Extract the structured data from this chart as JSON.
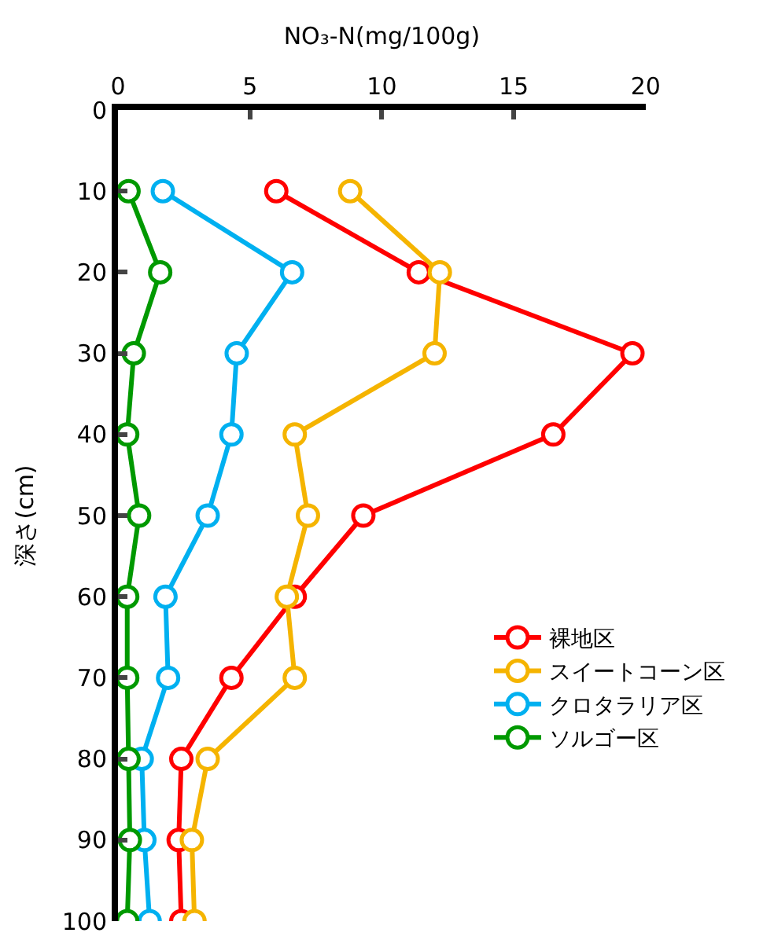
{
  "chart_data": {
    "type": "line",
    "xlabel": "NO₃-N(mg/100g)",
    "ylabel": "深さ(cm)",
    "orientation": "horizontal",
    "categories": [
      "0",
      "10",
      "20",
      "30",
      "40",
      "50",
      "60",
      "70",
      "80",
      "90",
      "100"
    ],
    "xlim": [
      0,
      20
    ],
    "xticks": [
      0,
      5,
      10,
      15,
      20
    ],
    "legend": "right",
    "marker": "circle",
    "line_style": "solid",
    "series": [
      {
        "name": "裸地区",
        "color": "#ff0000",
        "values": [
          null,
          6.0,
          11.4,
          19.5,
          16.5,
          9.3,
          6.7,
          4.3,
          2.4,
          2.3,
          2.4
        ]
      },
      {
        "name": "スイートコーン区",
        "color": "#f5b400",
        "values": [
          null,
          8.8,
          12.2,
          12.0,
          6.7,
          7.2,
          6.4,
          6.7,
          3.4,
          2.8,
          2.9
        ]
      },
      {
        "name": "クロタラリア区",
        "color": "#00b0f0",
        "values": [
          null,
          1.7,
          6.6,
          4.5,
          4.3,
          3.4,
          1.8,
          1.9,
          0.9,
          1.0,
          1.2
        ]
      },
      {
        "name": "ソルゴー区",
        "color": "#009900",
        "values": [
          null,
          0.4,
          1.6,
          0.6,
          0.35,
          0.8,
          0.35,
          0.35,
          0.4,
          0.45,
          0.35
        ]
      }
    ]
  }
}
